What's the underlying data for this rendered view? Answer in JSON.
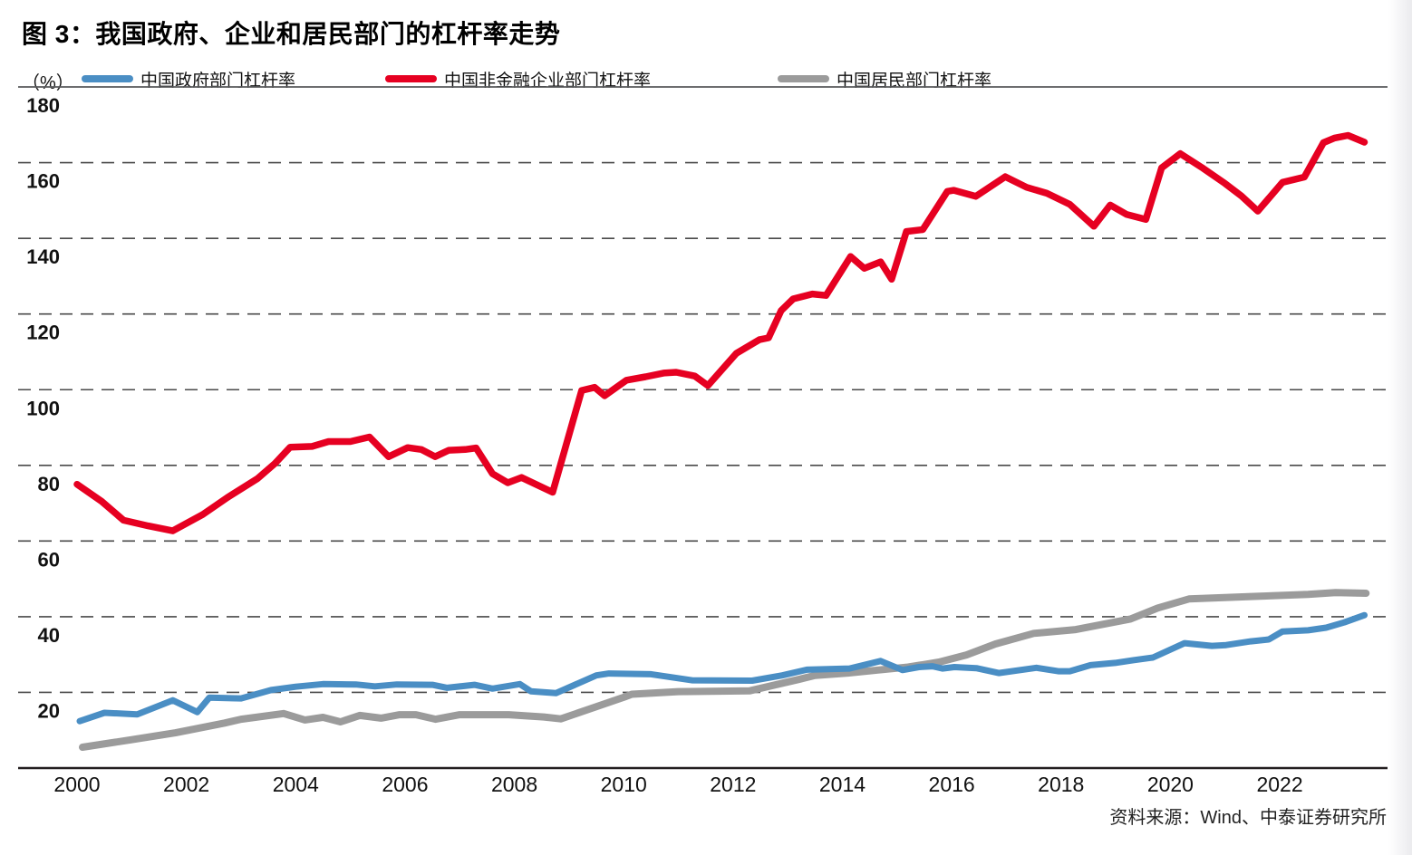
{
  "header": {
    "title": "图 3：我国政府、企业和居民部门的杠杆率走势"
  },
  "legend": {
    "unit": "（%）"
  },
  "footer": {
    "source": "资料来源：Wind、中泰证券研究所"
  },
  "colors": {
    "government_line": "#4a8ec4",
    "corporate_line": "#e60021",
    "household_line": "#9b9b9b",
    "gridline": "#4a4a4a",
    "axis": "#231f20",
    "top_rule": "#58595b",
    "text": "#111111"
  },
  "chart_data": {
    "type": "line",
    "title": "图 3：我国政府、企业和居民部门的杠杆率走势",
    "unit": "（%）",
    "xlabel": "",
    "ylabel": "（%）",
    "x_axis": {
      "ticks": [
        2000,
        2002,
        2004,
        2006,
        2008,
        2010,
        2012,
        2014,
        2016,
        2018,
        2020,
        2022
      ]
    },
    "y_axis": {
      "range": [
        0,
        180
      ],
      "ticks": [
        20,
        40,
        60,
        80,
        100,
        120,
        140,
        160,
        180
      ],
      "gridline_style": "dashed",
      "grid": true
    },
    "legend_position": "top",
    "series": [
      {
        "name": "中国政府部门杠杆率",
        "color": "#4a8ec4",
        "width": 7,
        "points": [
          [
            2000.05,
            12.4
          ],
          [
            2000.5,
            14.6
          ],
          [
            2001.1,
            14.2
          ],
          [
            2001.75,
            17.9
          ],
          [
            2002.2,
            14.8
          ],
          [
            2002.42,
            18.6
          ],
          [
            2003.0,
            18.4
          ],
          [
            2003.55,
            20.6
          ],
          [
            2004.0,
            21.5
          ],
          [
            2004.5,
            22.2
          ],
          [
            2005.1,
            22.1
          ],
          [
            2005.45,
            21.6
          ],
          [
            2005.85,
            22.1
          ],
          [
            2006.5,
            22.0
          ],
          [
            2006.77,
            21.2
          ],
          [
            2007.27,
            22.0
          ],
          [
            2007.6,
            21.0
          ],
          [
            2008.1,
            22.2
          ],
          [
            2008.3,
            20.3
          ],
          [
            2008.76,
            19.8
          ],
          [
            2009.5,
            24.5
          ],
          [
            2009.73,
            25.0
          ],
          [
            2010.5,
            24.8
          ],
          [
            2011.25,
            23.2
          ],
          [
            2012.35,
            23.1
          ],
          [
            2012.9,
            24.5
          ],
          [
            2013.35,
            26.0
          ],
          [
            2014.13,
            26.3
          ],
          [
            2014.7,
            28.3
          ],
          [
            2015.1,
            25.9
          ],
          [
            2015.4,
            26.7
          ],
          [
            2015.65,
            26.9
          ],
          [
            2015.83,
            26.3
          ],
          [
            2016.05,
            26.7
          ],
          [
            2016.45,
            26.4
          ],
          [
            2016.86,
            25.1
          ],
          [
            2017.55,
            26.5
          ],
          [
            2017.95,
            25.6
          ],
          [
            2018.16,
            25.6
          ],
          [
            2018.54,
            27.2
          ],
          [
            2018.99,
            27.8
          ],
          [
            2019.32,
            28.5
          ],
          [
            2019.68,
            29.2
          ],
          [
            2020.26,
            33.0
          ],
          [
            2020.76,
            32.3
          ],
          [
            2021.02,
            32.5
          ],
          [
            2021.47,
            33.5
          ],
          [
            2021.8,
            34.0
          ],
          [
            2022.05,
            36.1
          ],
          [
            2022.52,
            36.4
          ],
          [
            2022.85,
            37.1
          ],
          [
            2023.18,
            38.5
          ],
          [
            2023.55,
            40.4
          ]
        ]
      },
      {
        "name": "中国非金融企业部门杠杆率",
        "color": "#e60021",
        "width": 7.5,
        "points": [
          [
            2000.0,
            75.0
          ],
          [
            2000.45,
            70.5
          ],
          [
            2000.85,
            65.5
          ],
          [
            2001.3,
            64.0
          ],
          [
            2001.75,
            62.7
          ],
          [
            2002.3,
            67.0
          ],
          [
            2002.75,
            71.5
          ],
          [
            2003.3,
            76.5
          ],
          [
            2003.62,
            80.5
          ],
          [
            2003.9,
            84.8
          ],
          [
            2004.3,
            85.0
          ],
          [
            2004.6,
            86.3
          ],
          [
            2005.0,
            86.3
          ],
          [
            2005.35,
            87.5
          ],
          [
            2005.7,
            82.3
          ],
          [
            2006.05,
            84.7
          ],
          [
            2006.3,
            84.2
          ],
          [
            2006.55,
            82.3
          ],
          [
            2006.8,
            84.0
          ],
          [
            2007.1,
            84.2
          ],
          [
            2007.3,
            84.6
          ],
          [
            2007.6,
            77.8
          ],
          [
            2007.88,
            75.4
          ],
          [
            2008.13,
            76.8
          ],
          [
            2008.7,
            72.9
          ],
          [
            2009.23,
            99.8
          ],
          [
            2009.47,
            100.6
          ],
          [
            2009.65,
            98.4
          ],
          [
            2010.05,
            102.5
          ],
          [
            2010.4,
            103.4
          ],
          [
            2010.73,
            104.4
          ],
          [
            2010.96,
            104.6
          ],
          [
            2011.3,
            103.6
          ],
          [
            2011.54,
            101.1
          ],
          [
            2012.06,
            109.6
          ],
          [
            2012.48,
            113.2
          ],
          [
            2012.65,
            113.7
          ],
          [
            2012.88,
            120.9
          ],
          [
            2013.1,
            124.0
          ],
          [
            2013.45,
            125.3
          ],
          [
            2013.7,
            124.9
          ],
          [
            2014.15,
            135.2
          ],
          [
            2014.4,
            132.1
          ],
          [
            2014.7,
            133.8
          ],
          [
            2014.9,
            129.2
          ],
          [
            2015.17,
            141.8
          ],
          [
            2015.47,
            142.3
          ],
          [
            2015.92,
            152.4
          ],
          [
            2016.04,
            152.7
          ],
          [
            2016.44,
            151.1
          ],
          [
            2016.98,
            156.3
          ],
          [
            2017.37,
            153.5
          ],
          [
            2017.74,
            151.9
          ],
          [
            2018.16,
            149.0
          ],
          [
            2018.6,
            143.2
          ],
          [
            2018.9,
            148.8
          ],
          [
            2019.2,
            146.3
          ],
          [
            2019.55,
            145.0
          ],
          [
            2019.84,
            158.6
          ],
          [
            2020.18,
            162.4
          ],
          [
            2020.6,
            158.5
          ],
          [
            2021.0,
            154.5
          ],
          [
            2021.3,
            151.2
          ],
          [
            2021.6,
            147.2
          ],
          [
            2022.05,
            154.8
          ],
          [
            2022.45,
            156.2
          ],
          [
            2022.8,
            165.3
          ],
          [
            2023.0,
            166.5
          ],
          [
            2023.25,
            167.2
          ],
          [
            2023.55,
            165.4
          ]
        ]
      },
      {
        "name": "中国居民部门杠杆率",
        "color": "#9b9b9b",
        "width": 8,
        "points": [
          [
            2000.1,
            5.5
          ],
          [
            2001.0,
            7.5
          ],
          [
            2001.8,
            9.3
          ],
          [
            2002.7,
            11.9
          ],
          [
            2003.0,
            12.9
          ],
          [
            2003.78,
            14.4
          ],
          [
            2004.17,
            12.7
          ],
          [
            2004.5,
            13.4
          ],
          [
            2004.82,
            12.2
          ],
          [
            2005.17,
            13.9
          ],
          [
            2005.56,
            13.2
          ],
          [
            2005.9,
            14.1
          ],
          [
            2006.2,
            14.1
          ],
          [
            2006.56,
            12.9
          ],
          [
            2007.0,
            14.1
          ],
          [
            2007.9,
            14.1
          ],
          [
            2008.54,
            13.5
          ],
          [
            2008.85,
            13.0
          ],
          [
            2010.0,
            18.7
          ],
          [
            2010.15,
            19.5
          ],
          [
            2011.0,
            20.2
          ],
          [
            2012.3,
            20.4
          ],
          [
            2013.2,
            23.4
          ],
          [
            2013.5,
            24.5
          ],
          [
            2014.1,
            25.1
          ],
          [
            2014.65,
            25.9
          ],
          [
            2015.2,
            26.7
          ],
          [
            2015.77,
            28.0
          ],
          [
            2016.27,
            29.9
          ],
          [
            2016.8,
            32.8
          ],
          [
            2017.5,
            35.6
          ],
          [
            2018.27,
            36.6
          ],
          [
            2019.27,
            39.4
          ],
          [
            2019.77,
            42.3
          ],
          [
            2020.34,
            44.7
          ],
          [
            2021.64,
            45.4
          ],
          [
            2022.52,
            45.9
          ],
          [
            2023.02,
            46.4
          ],
          [
            2023.58,
            46.2
          ]
        ]
      }
    ]
  }
}
